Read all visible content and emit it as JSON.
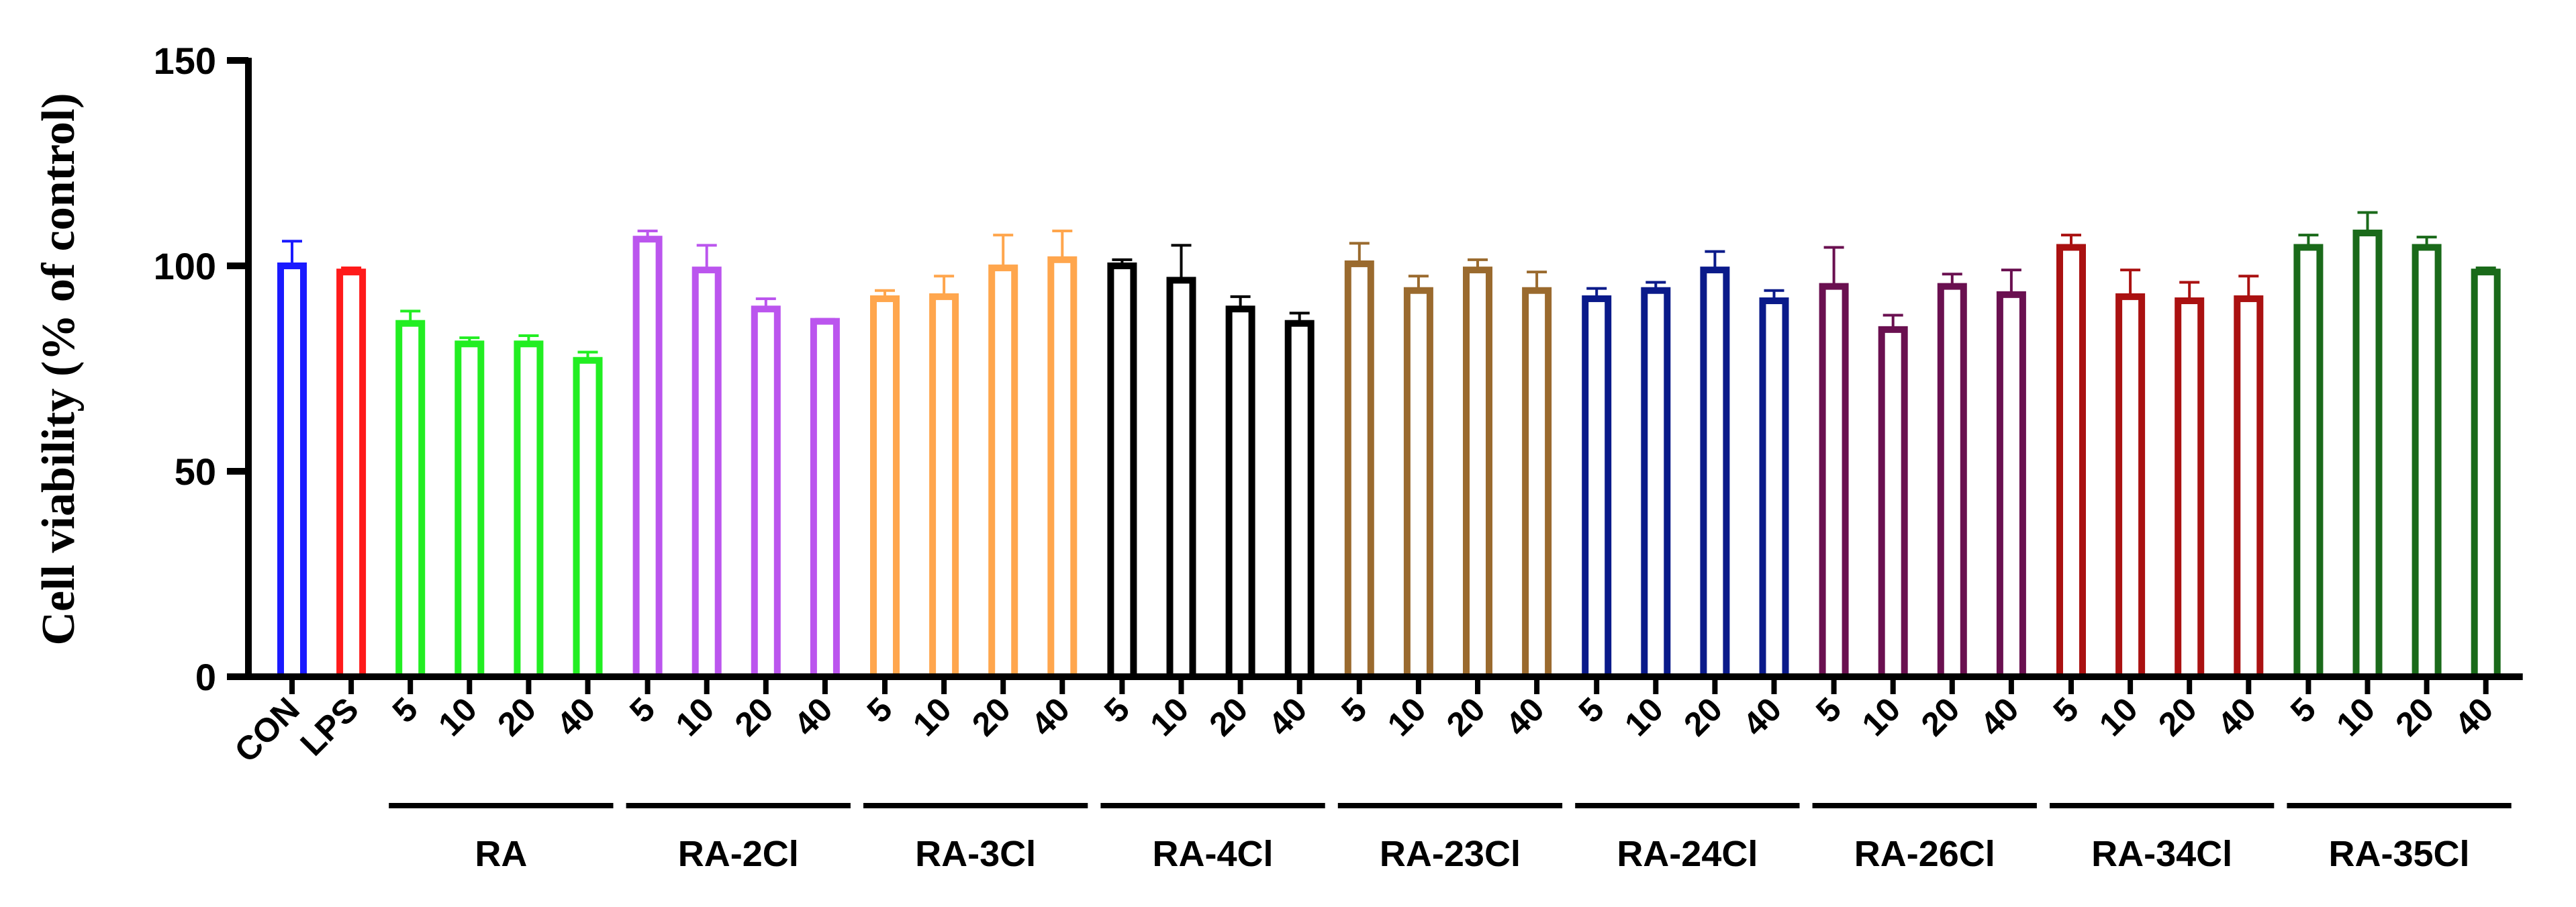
{
  "chart_data": {
    "type": "bar",
    "title": "",
    "xlabel": "",
    "ylabel": "Cell viability (% of control)",
    "ylim": [
      0,
      150
    ],
    "yticks": [
      0,
      50,
      100,
      150
    ],
    "grid": false,
    "controls": [
      {
        "label": "CON",
        "value": 100,
        "error": 6,
        "color": "#1a1aff"
      },
      {
        "label": "LPS",
        "value": 98.5,
        "error": 1,
        "color": "#ff1a1a"
      }
    ],
    "groups": [
      {
        "name": "RA",
        "color": "#22ee22",
        "doses": [
          "5",
          "10",
          "20",
          "40"
        ],
        "values": [
          86,
          81,
          81,
          77
        ],
        "errors": [
          3,
          1.5,
          2,
          2
        ]
      },
      {
        "name": "RA-2Cl",
        "color": "#bb55ee",
        "doses": [
          "5",
          "10",
          "20",
          "40"
        ],
        "values": [
          106.5,
          99,
          89.5,
          86.5
        ],
        "errors": [
          2,
          6,
          2.5,
          0.5
        ]
      },
      {
        "name": "RA-3Cl",
        "color": "#ffa64d",
        "doses": [
          "5",
          "10",
          "20",
          "40"
        ],
        "values": [
          92,
          92.5,
          99.5,
          101.5
        ],
        "errors": [
          2,
          5,
          8,
          7
        ]
      },
      {
        "name": "RA-4Cl",
        "color": "#000000",
        "doses": [
          "5",
          "10",
          "20",
          "40"
        ],
        "values": [
          100,
          96.5,
          89.5,
          86
        ],
        "errors": [
          1.5,
          8.5,
          3,
          2.5
        ]
      },
      {
        "name": "RA-23Cl",
        "color": "#9a6a2e",
        "doses": [
          "5",
          "10",
          "20",
          "40"
        ],
        "values": [
          100.5,
          94,
          99,
          94
        ],
        "errors": [
          5,
          3.5,
          2.5,
          4.5
        ]
      },
      {
        "name": "RA-24Cl",
        "color": "#0a1a8a",
        "doses": [
          "5",
          "10",
          "20",
          "40"
        ],
        "values": [
          92,
          94,
          99,
          91.5
        ],
        "errors": [
          2.5,
          2,
          4.5,
          2.5
        ]
      },
      {
        "name": "RA-26Cl",
        "color": "#6a1050",
        "doses": [
          "5",
          "10",
          "20",
          "40"
        ],
        "values": [
          95,
          84.5,
          95,
          93
        ],
        "errors": [
          9.5,
          3.5,
          3,
          6
        ]
      },
      {
        "name": "RA-34Cl",
        "color": "#aa1111",
        "doses": [
          "5",
          "10",
          "20",
          "40"
        ],
        "values": [
          104.5,
          92.5,
          91.5,
          92
        ],
        "errors": [
          3,
          6.5,
          4.5,
          5.5
        ]
      },
      {
        "name": "RA-35Cl",
        "color": "#1a6a1a",
        "doses": [
          "5",
          "10",
          "20",
          "40"
        ],
        "values": [
          104.5,
          108,
          104.5,
          98.5
        ],
        "errors": [
          3,
          5,
          2.5,
          1
        ]
      }
    ]
  }
}
